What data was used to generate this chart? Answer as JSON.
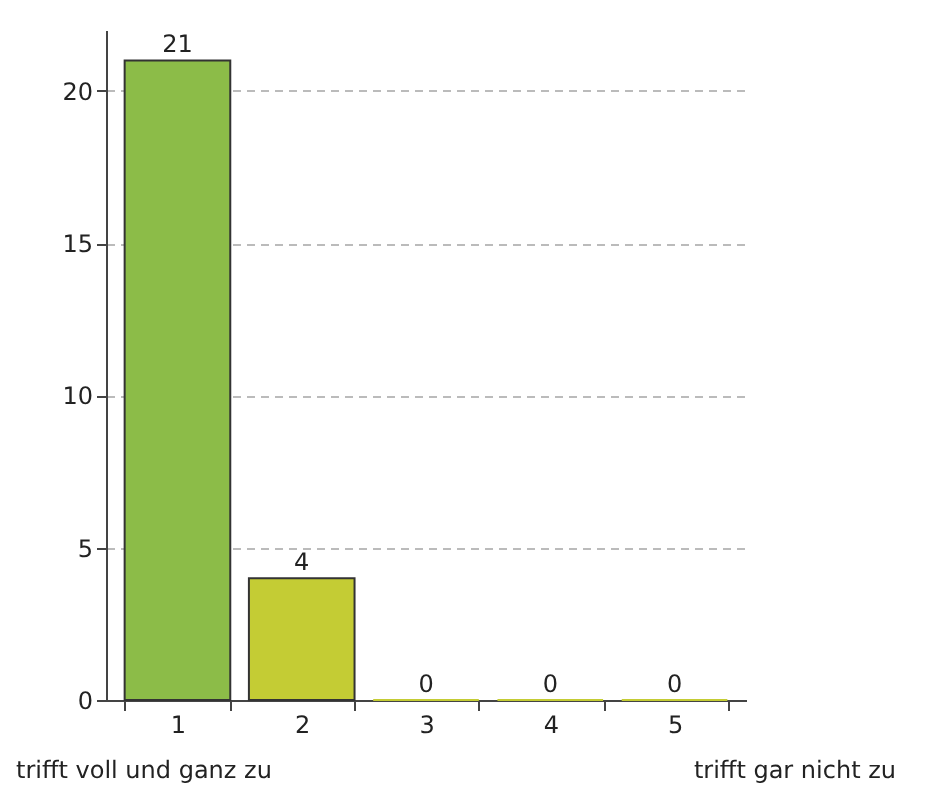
{
  "chart_data": {
    "type": "bar",
    "categories": [
      "1",
      "2",
      "3",
      "4",
      "5"
    ],
    "values": [
      21,
      4,
      0,
      0,
      0
    ],
    "colors": [
      "#8cbc48",
      "#c4cc34",
      "#c4cc34",
      "#c4cc34",
      "#c4cc34"
    ],
    "ylim": [
      0,
      22
    ],
    "yticks": [
      0,
      5,
      10,
      15,
      20
    ],
    "grid": "y",
    "data_labels": true,
    "annotations": [
      "trifft voll und ganz zu",
      "trifft gar nicht zu"
    ]
  }
}
